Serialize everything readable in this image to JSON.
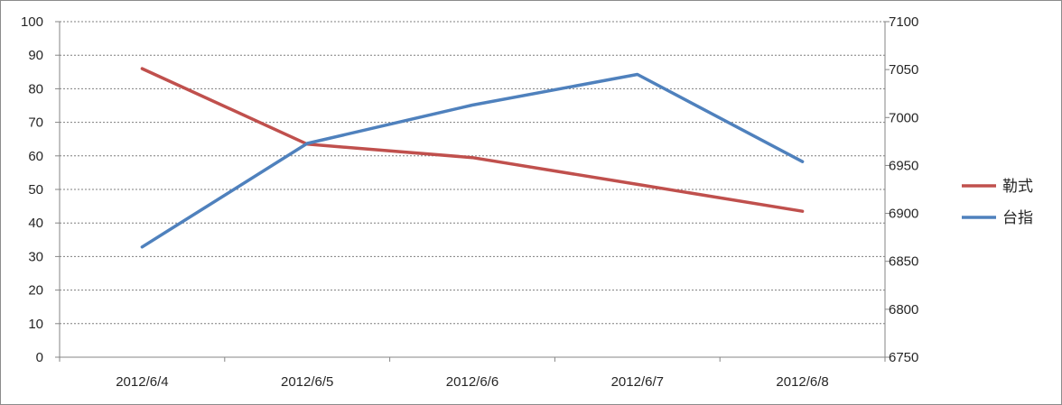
{
  "chart_data": {
    "type": "line",
    "title": "",
    "xlabel": "",
    "ylabel": "",
    "categories": [
      "2012/6/4",
      "2012/6/5",
      "2012/6/6",
      "2012/6/7",
      "2012/6/8"
    ],
    "series": [
      {
        "name": "勒式",
        "axis": "left",
        "color": "#c0504d",
        "values": [
          86,
          63.5,
          59.5,
          51.5,
          43.5
        ]
      },
      {
        "name": "台指",
        "axis": "right",
        "color": "#4f81bd",
        "values": [
          6865,
          6973,
          7013,
          7045,
          6954
        ]
      }
    ],
    "y_left": {
      "range": [
        0,
        100
      ],
      "ticks": [
        "0",
        "10",
        "20",
        "30",
        "40",
        "50",
        "60",
        "70",
        "80",
        "90",
        "100"
      ]
    },
    "y_right": {
      "range": [
        6750,
        7100
      ],
      "ticks": [
        "6750",
        "6800",
        "6850",
        "6900",
        "6950",
        "7000",
        "7050",
        "7100"
      ]
    },
    "grid": "horizontal-dashed",
    "legend_position": "right"
  }
}
